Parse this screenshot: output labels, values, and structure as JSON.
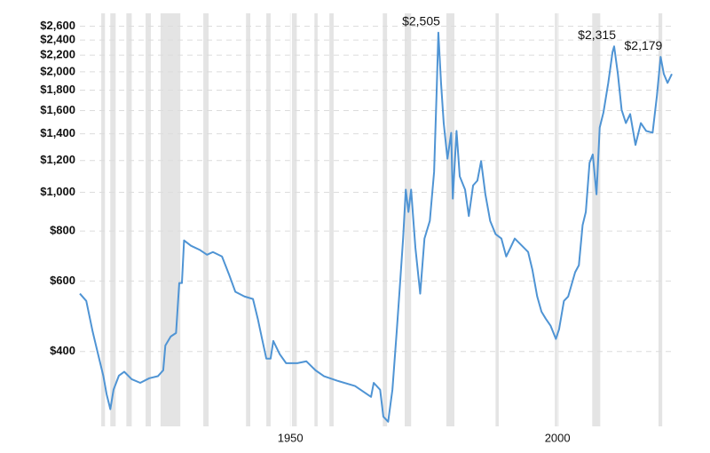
{
  "chart_data": {
    "type": "line",
    "color": "#4f94d4",
    "shade_color": "#e4e4e4",
    "log_scale": true,
    "grid": true,
    "xlim": [
      1910.6,
      2021.4
    ],
    "ylim": [
      260,
      2800
    ],
    "xticks": [
      1950,
      2000
    ],
    "yticks": [
      {
        "value": 400,
        "label": "$400"
      },
      {
        "value": 600,
        "label": "$600"
      },
      {
        "value": 800,
        "label": "$800"
      },
      {
        "value": 1000,
        "label": "$1,000"
      },
      {
        "value": 1200,
        "label": "$1,200"
      },
      {
        "value": 1400,
        "label": "$1,400"
      },
      {
        "value": 1600,
        "label": "$1,600"
      },
      {
        "value": 1800,
        "label": "$1,800"
      },
      {
        "value": 2000,
        "label": "$2,000"
      },
      {
        "value": 2200,
        "label": "$2,200"
      },
      {
        "value": 2400,
        "label": "$2,400"
      },
      {
        "value": 2600,
        "label": "$2,600"
      }
    ],
    "shaded_ranges": [
      [
        1914.6,
        1915.3
      ],
      [
        1916.3,
        1917.3
      ],
      [
        1919.3,
        1920.3
      ],
      [
        1922.9,
        1923.9
      ],
      [
        1925.7,
        1929.4
      ],
      [
        1933.7,
        1934.7
      ],
      [
        1941.7,
        1942.5
      ],
      [
        1945.5,
        1946.3
      ],
      [
        1950.3,
        1951.2
      ],
      [
        1954.5,
        1955.1
      ],
      [
        1957.3,
        1958.1
      ],
      [
        1967.3,
        1968.1
      ],
      [
        1971.4,
        1972.6
      ],
      [
        1979.2,
        1980.7
      ],
      [
        1988.4,
        1989.0
      ],
      [
        1999.5,
        2000.2
      ],
      [
        2006.5,
        2008.0
      ],
      [
        2018.9,
        2019.6
      ]
    ],
    "x": [
      1910.6,
      1911.8,
      1913.0,
      1914.0,
      1915.0,
      1915.6,
      1916.3,
      1916.9,
      1917.9,
      1918.9,
      1920.3,
      1921.9,
      1923.6,
      1925.2,
      1926.2,
      1926.6,
      1927.6,
      1928.6,
      1929.2,
      1929.7,
      1930.1,
      1931.4,
      1933.1,
      1934.4,
      1935.5,
      1937.2,
      1938.5,
      1939.7,
      1941.4,
      1943.0,
      1943.9,
      1944.7,
      1945.5,
      1946.3,
      1946.8,
      1948.0,
      1949.2,
      1951.3,
      1953.0,
      1954.7,
      1956.3,
      1958.8,
      1962.1,
      1965.1,
      1965.6,
      1966.8,
      1967.4,
      1968.3,
      1969.1,
      1969.9,
      1970.4,
      1971.1,
      1971.6,
      1972.1,
      1972.6,
      1973.4,
      1974.3,
      1975.1,
      1976.1,
      1976.9,
      1977.4,
      1977.7,
      1978.2,
      1978.7,
      1979.4,
      1980.1,
      1980.4,
      1981.1,
      1981.7,
      1982.7,
      1983.4,
      1984.2,
      1985.0,
      1985.7,
      1986.5,
      1987.4,
      1988.4,
      1989.5,
      1990.4,
      1991.2,
      1992.0,
      1993.7,
      1994.5,
      1995.3,
      1996.2,
      1997.0,
      1997.8,
      1998.7,
      1999.7,
      2000.3,
      2001.2,
      2002.0,
      2003.3,
      2004.0,
      2004.7,
      2005.3,
      2006.0,
      2006.6,
      2007.3,
      2007.9,
      2008.6,
      2009.5,
      2010.3,
      2010.6,
      2011.3,
      2012.0,
      2012.8,
      2013.6,
      2014.6,
      2015.6,
      2016.6,
      2017.8,
      2018.6,
      2019.3,
      2019.9,
      2020.6,
      2021.4
    ],
    "values": [
      558,
      535,
      448,
      394,
      347,
      313,
      287,
      321,
      348,
      356,
      341,
      334,
      343,
      347,
      359,
      414,
      436,
      445,
      593,
      593,
      758,
      735,
      717,
      698,
      709,
      691,
      624,
      564,
      549,
      541,
      483,
      430,
      384,
      384,
      425,
      394,
      374,
      374,
      378,
      359,
      347,
      338,
      328,
      308,
      334,
      321,
      275,
      267,
      321,
      448,
      558,
      766,
      1015,
      893,
      1015,
      727,
      558,
      766,
      848,
      1124,
      1827,
      2505,
      1876,
      1489,
      1213,
      1407,
      964,
      1423,
      1096,
      1015,
      872,
      1040,
      1069,
      1196,
      988,
      848,
      786,
      766,
      691,
      727,
      766,
      727,
      709,
      640,
      549,
      503,
      483,
      464,
      430,
      455,
      535,
      549,
      631,
      657,
      828,
      893,
      1185,
      1243,
      988,
      1451,
      1583,
      1876,
      2241,
      2315,
      1975,
      1607,
      1489,
      1568,
      1313,
      1489,
      1423,
      1409,
      1738,
      2179,
      1975,
      1876,
      1975
    ],
    "annotations": [
      {
        "x": 1977.7,
        "value": 2505,
        "label": "$2,505"
      },
      {
        "x": 2010.6,
        "value": 2315,
        "label": "$2,315"
      },
      {
        "x": 2019.3,
        "value": 2179,
        "label": "$2,179"
      }
    ]
  }
}
